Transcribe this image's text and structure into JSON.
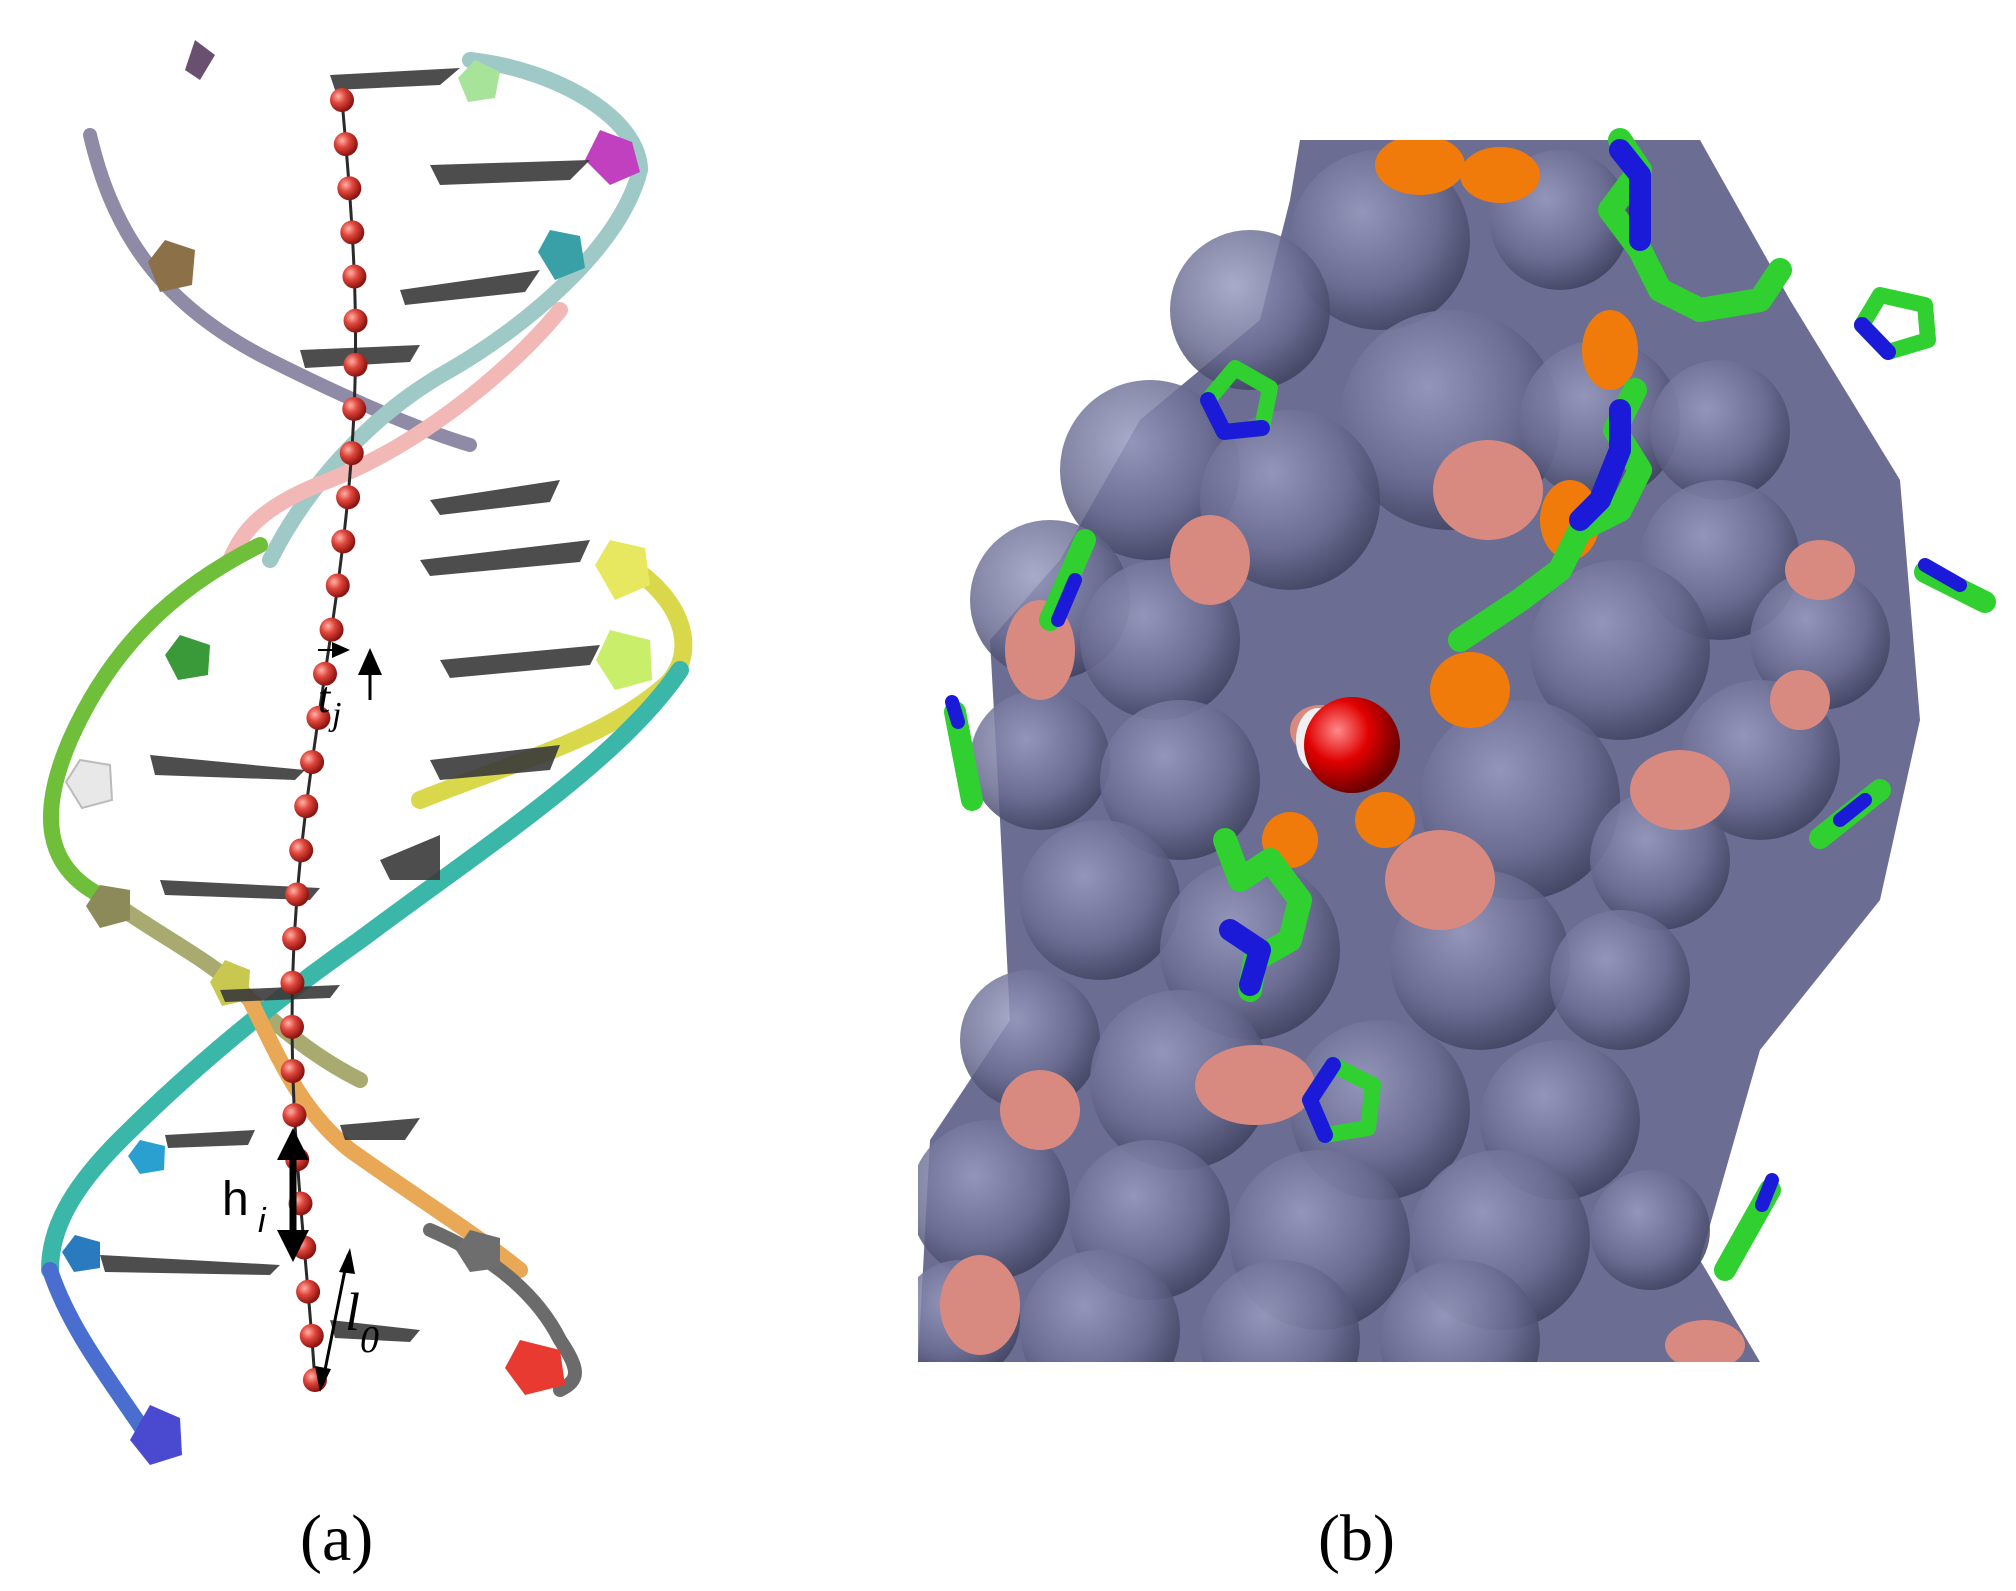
{
  "panels": [
    {
      "id": "a",
      "caption": "(a)",
      "annotations": {
        "tangent_label": "t",
        "tangent_subscript": "j",
        "rise_label": "h",
        "rise_subscript": "i",
        "bond_label": "l",
        "bond_subscript": "0"
      }
    },
    {
      "id": "b",
      "caption": "(b)"
    }
  ],
  "colors": {
    "background": "#ffffff",
    "bead": "#d9403a",
    "surface": "#6b6d93",
    "surface_patch": "#d98a80",
    "ion_green": "#2fd02f",
    "ion_blue": "#1a1ad8",
    "ion_orange": "#f07b0a",
    "central_ion": "#e00000"
  }
}
